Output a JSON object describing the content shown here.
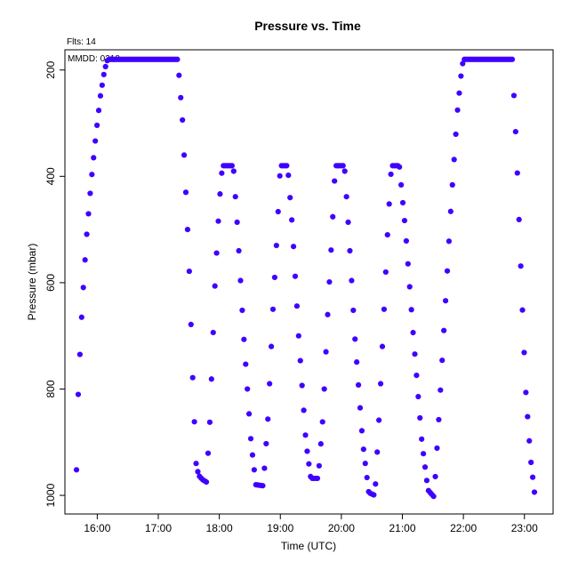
{
  "chart_data": {
    "type": "scatter",
    "title": "Pressure  vs. Time",
    "xlabel": "Time (UTC)",
    "ylabel": "Pressure (mbar)",
    "annotations": {
      "flts": "Flts: 14",
      "mmdd": "MMDD: 0218"
    },
    "x_ticks": [
      "16:00",
      "17:00",
      "18:00",
      "19:00",
      "20:00",
      "21:00",
      "22:00",
      "23:00"
    ],
    "x_tick_hours": [
      16,
      17,
      18,
      19,
      20,
      21,
      22,
      23
    ],
    "y_ticks": [
      200,
      400,
      600,
      800,
      1000
    ],
    "xlim_hours": [
      15.47,
      23.47
    ],
    "ylim": [
      1035,
      162
    ],
    "y_inverted": true,
    "grid": false,
    "point_color": "#4000ff",
    "profile_vertices": [
      [
        15.66,
        952
      ],
      [
        15.69,
        800
      ],
      [
        15.75,
        650
      ],
      [
        15.82,
        520
      ],
      [
        15.9,
        410
      ],
      [
        15.98,
        320
      ],
      [
        16.05,
        250
      ],
      [
        16.12,
        200
      ],
      [
        16.17,
        180
      ],
      [
        17.32,
        180
      ],
      [
        17.4,
        300
      ],
      [
        17.5,
        550
      ],
      [
        17.57,
        800
      ],
      [
        17.62,
        940
      ],
      [
        17.66,
        962
      ],
      [
        17.72,
        970
      ],
      [
        17.79,
        975
      ],
      [
        17.85,
        850
      ],
      [
        17.93,
        600
      ],
      [
        18.0,
        450
      ],
      [
        18.05,
        380
      ],
      [
        18.23,
        380
      ],
      [
        18.3,
        500
      ],
      [
        18.4,
        700
      ],
      [
        18.52,
        900
      ],
      [
        18.6,
        980
      ],
      [
        18.72,
        982
      ],
      [
        18.8,
        850
      ],
      [
        18.88,
        650
      ],
      [
        18.95,
        500
      ],
      [
        19.0,
        380
      ],
      [
        19.12,
        380
      ],
      [
        19.2,
        500
      ],
      [
        19.3,
        700
      ],
      [
        19.42,
        900
      ],
      [
        19.5,
        968
      ],
      [
        19.62,
        968
      ],
      [
        19.7,
        850
      ],
      [
        19.78,
        650
      ],
      [
        19.85,
        500
      ],
      [
        19.9,
        380
      ],
      [
        20.05,
        380
      ],
      [
        20.12,
        500
      ],
      [
        20.22,
        700
      ],
      [
        20.35,
        900
      ],
      [
        20.45,
        995
      ],
      [
        20.55,
        1000
      ],
      [
        20.62,
        850
      ],
      [
        20.7,
        650
      ],
      [
        20.76,
        500
      ],
      [
        20.82,
        380
      ],
      [
        20.95,
        380
      ],
      [
        21.05,
        500
      ],
      [
        21.18,
        700
      ],
      [
        21.32,
        900
      ],
      [
        21.42,
        990
      ],
      [
        21.52,
        1003
      ],
      [
        21.6,
        850
      ],
      [
        21.7,
        650
      ],
      [
        21.8,
        450
      ],
      [
        21.9,
        280
      ],
      [
        21.97,
        200
      ],
      [
        22.0,
        180
      ],
      [
        22.8,
        180
      ],
      [
        22.87,
        350
      ],
      [
        22.95,
        600
      ],
      [
        23.02,
        800
      ],
      [
        23.1,
        930
      ],
      [
        23.17,
        1000
      ]
    ]
  }
}
